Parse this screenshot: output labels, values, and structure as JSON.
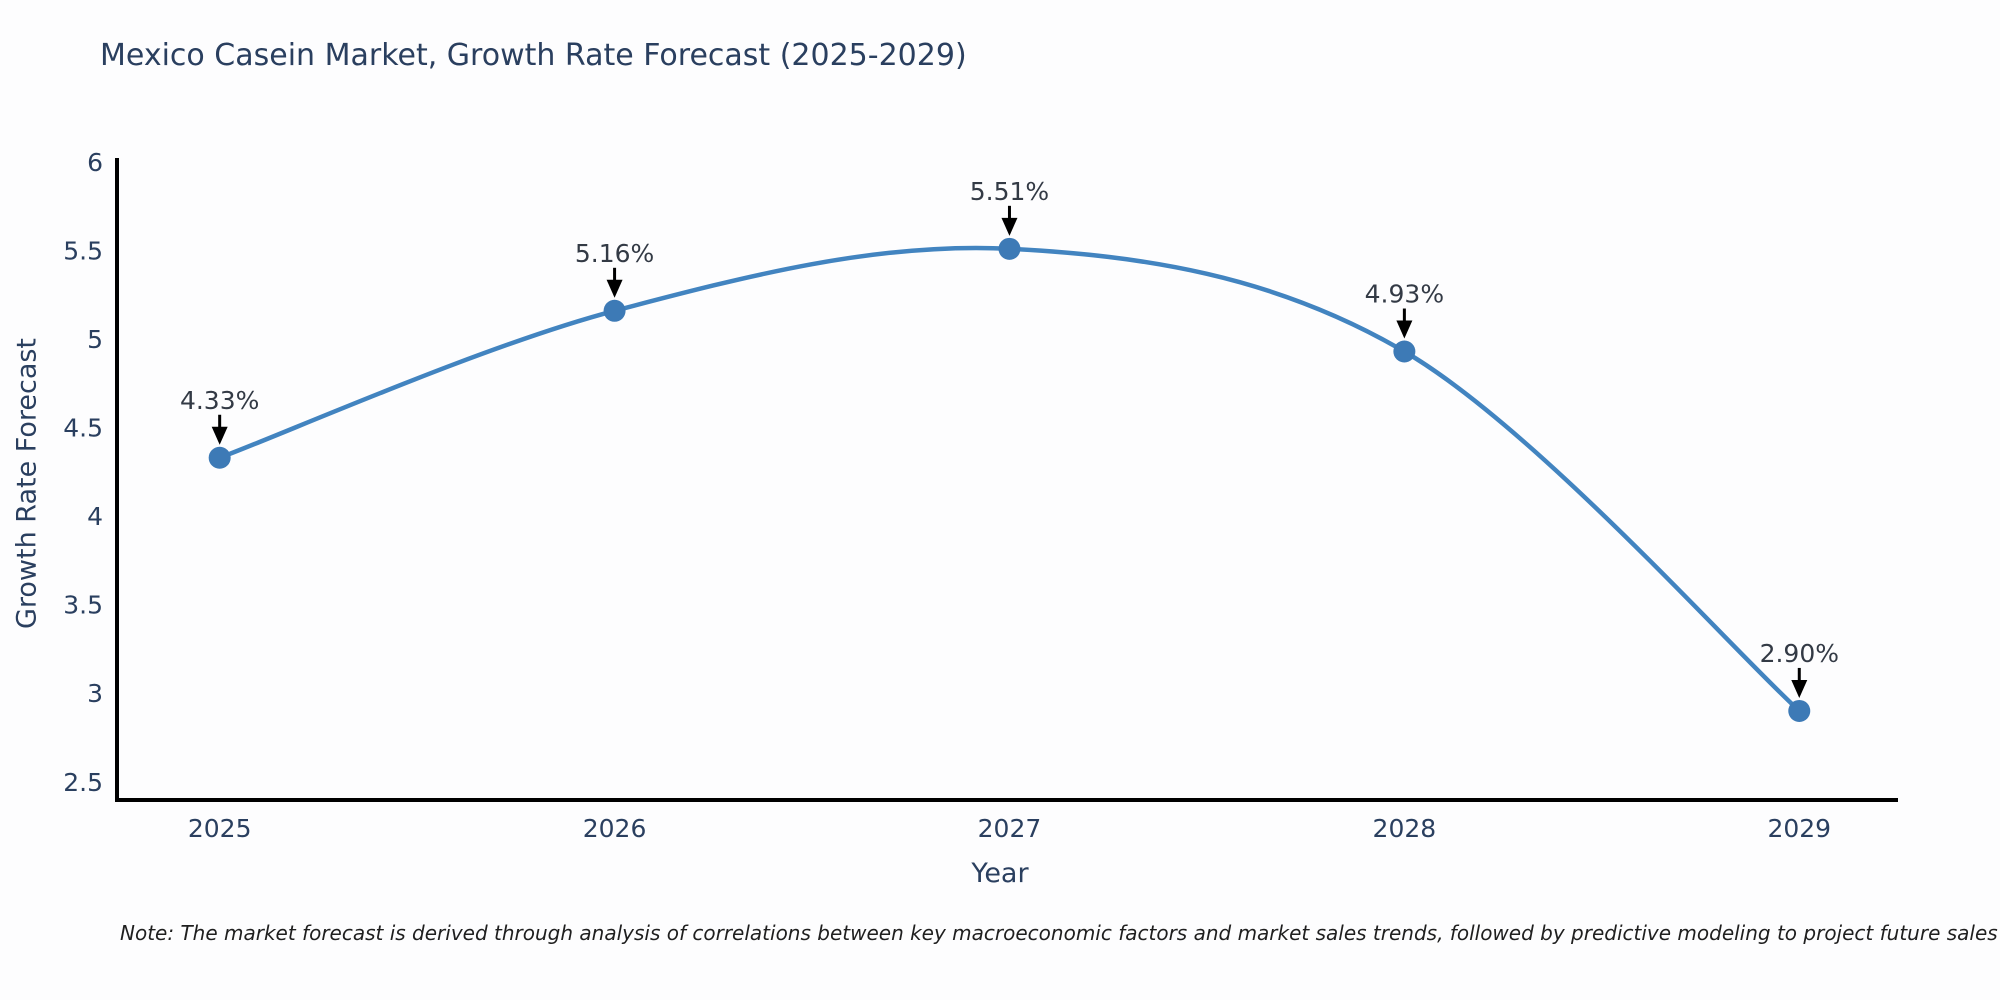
{
  "chart_data": {
    "type": "line",
    "title": "Mexico Casein Market, Growth Rate Forecast (2025-2029)",
    "xlabel": "Year",
    "ylabel": "Growth Rate Forecast",
    "x": [
      2025,
      2026,
      2027,
      2028,
      2029
    ],
    "series": [
      {
        "name": "Growth Rate Forecast",
        "values": [
          4.33,
          5.16,
          5.51,
          4.93,
          2.9
        ],
        "point_labels": [
          "4.33%",
          "5.16%",
          "5.51%",
          "4.93%",
          "2.90%"
        ]
      }
    ],
    "x_tick_labels": [
      "2025",
      "2026",
      "2027",
      "2028",
      "2029"
    ],
    "y_ticks": [
      2.5,
      3,
      3.5,
      4,
      4.5,
      5,
      5.5,
      6
    ],
    "y_tick_labels": [
      "2.5",
      "3",
      "3.5",
      "4",
      "4.5",
      "5",
      "5.5",
      "6"
    ],
    "xlim": [
      2024.74,
      2029.25
    ],
    "ylim": [
      2.397,
      6.023
    ],
    "line_shape": "spline",
    "grid": false,
    "legend_position": "none",
    "colors": {
      "line": "#4284c0",
      "marker": "#3d7ab6",
      "axis": "#000000",
      "arrow": "#000000",
      "tick_text": "#2a3f5f",
      "annotation_text": "#333a45",
      "background": "#fdfdfe"
    }
  },
  "footnote": "Note: The market forecast is derived through analysis of correlations between key macroeconomic factors and market sales trends, followed by predictive modeling to project future sales"
}
